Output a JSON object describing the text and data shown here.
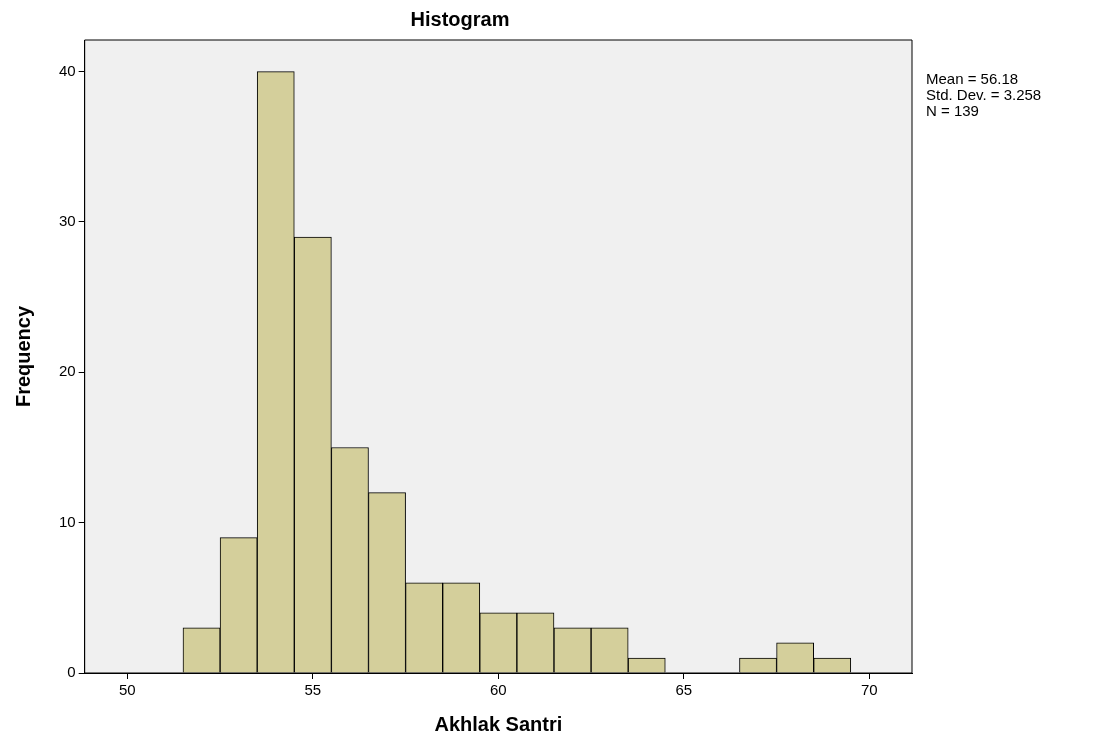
{
  "chart_data": {
    "type": "histogram",
    "title": "Histogram",
    "xlabel": "Akhlak Santri",
    "ylabel": "Frequency",
    "bins": [
      51.5,
      52.5,
      53.5,
      54.5,
      55.5,
      56.5,
      57.5,
      58.5,
      59.5,
      60.5,
      61.5,
      62.5,
      63.5,
      64.5,
      65.5,
      66.5,
      67.5,
      68.5,
      69.5
    ],
    "values": [
      3,
      9,
      40,
      29,
      15,
      12,
      6,
      6,
      4,
      4,
      3,
      3,
      1,
      0,
      0,
      1,
      2,
      1
    ],
    "color": "#d4cf9b",
    "xlim": [
      48.85,
      71.15
    ],
    "xticks": [
      50,
      55,
      60,
      65,
      70
    ],
    "ylim": [
      0,
      42.1
    ],
    "yticks": [
      0,
      10,
      20,
      30,
      40
    ],
    "grid": false,
    "annotations": [
      "Mean = 56.18",
      "Std. Dev. = 3.258",
      "N = 139"
    ]
  }
}
